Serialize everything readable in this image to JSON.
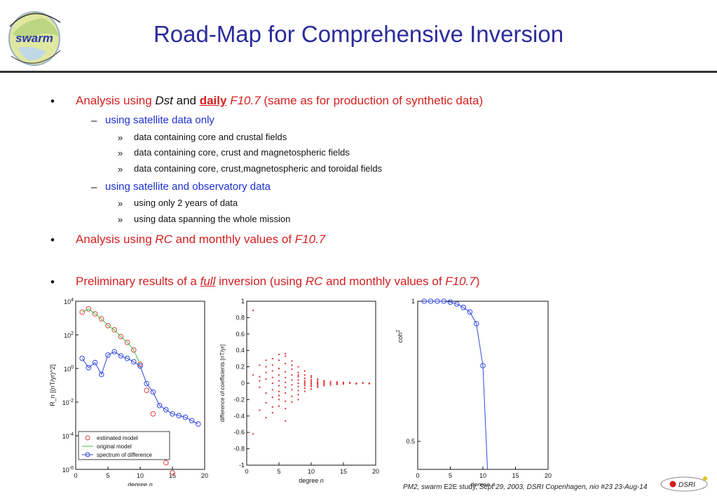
{
  "logo": {
    "text": "swarm",
    "icon": "globe-logo-icon"
  },
  "title": "Road-Map for Comprehensive Inversion",
  "bullets": {
    "b1": {
      "pre": "Analysis using ",
      "dst": "Dst",
      "and": " and ",
      "daily": "daily",
      "f107": "F10.7",
      "post": " (same as for production of synthetic data)"
    },
    "b1_s1": "using satellite data only",
    "b1_s1_items": [
      "data containing core and crustal fields",
      "data containing core, crust and magnetospheric fields",
      "data containing core, crust,magnetospheric and toroidal fields"
    ],
    "b1_s2": "using satellite and observatory data",
    "b1_s2_items": [
      "using only 2 years of data",
      "using data spanning the whole mission"
    ],
    "b2": {
      "pre": "Analysis using ",
      "rc": "RC",
      "mid": " and monthly values of ",
      "f107": "F10.7"
    },
    "b3": {
      "pre": "Preliminary results of a ",
      "full": "full",
      "mid1": " inversion (using ",
      "rc": "RC",
      "mid2": " and monthly values of ",
      "f107": "F10.7",
      "post": ")"
    },
    "markers": {
      "l1": "•",
      "l2": "–",
      "l3": "»"
    }
  },
  "chart_data": [
    {
      "type": "line",
      "xlabel": "degree n",
      "ylabel": "R_n [(nT/yr)^2]",
      "xlim": [
        0,
        20
      ],
      "ylim_log10": [
        -6,
        4
      ],
      "xticks": [
        "0",
        "5",
        "10",
        "15",
        "20"
      ],
      "yticks": [
        "10^-6",
        "10^-4",
        "10^-2",
        "10^0",
        "10^2",
        "10^4"
      ],
      "legend": [
        "estimated model",
        "original model",
        "spectrum of difference"
      ],
      "series": [
        {
          "name": "estimated model",
          "color": "#e04040",
          "marker": "circle",
          "x": [
            1,
            2,
            3,
            4,
            5,
            6,
            7,
            8,
            9,
            10,
            11,
            12,
            13,
            14,
            15
          ],
          "log10y": [
            3.35,
            3.55,
            3.25,
            2.95,
            2.55,
            2.3,
            1.9,
            1.55,
            1.1,
            0.25,
            -1.3,
            -2.7,
            -4.2,
            -5.6,
            -6.2
          ]
        },
        {
          "name": "original model",
          "color": "#40c040",
          "marker": "none",
          "x": [
            1,
            2,
            3,
            4,
            5,
            6,
            7,
            8,
            9,
            10
          ],
          "log10y": [
            3.35,
            3.55,
            3.25,
            2.95,
            2.55,
            2.3,
            1.9,
            1.55,
            1.1,
            0.25
          ]
        },
        {
          "name": "spectrum of difference",
          "color": "#3048e0",
          "marker": "circle",
          "x": [
            1,
            2,
            3,
            4,
            5,
            6,
            7,
            8,
            9,
            10,
            11,
            12,
            13,
            14,
            15,
            16,
            17,
            18,
            19
          ],
          "log10y": [
            0.6,
            0.05,
            0.35,
            -0.35,
            0.8,
            1.0,
            0.75,
            0.6,
            0.4,
            0.15,
            -0.9,
            -1.4,
            -2.2,
            -2.45,
            -2.7,
            -2.8,
            -2.9,
            -3.1,
            -3.3
          ]
        }
      ]
    },
    {
      "type": "scatter",
      "xlabel": "degree n",
      "ylabel": "difference of coefficients [nT/yr]",
      "xlim": [
        0,
        20
      ],
      "ylim": [
        -1,
        1
      ],
      "xticks": [
        "0",
        "5",
        "10",
        "15",
        "20"
      ],
      "yticks": [
        "-1",
        "-0.8",
        "-0.6",
        "-0.4",
        "-0.2",
        "0",
        "0.2",
        "0.4",
        "0.6",
        "0.8",
        "1"
      ],
      "series": [
        {
          "color": "#e03030",
          "points": [
            [
              1,
              0.89
            ],
            [
              1,
              0.1
            ],
            [
              1,
              -0.62
            ],
            [
              2,
              0.22
            ],
            [
              2,
              0.08
            ],
            [
              2,
              -0.05
            ],
            [
              2,
              -0.33
            ],
            [
              2,
              0.03
            ],
            [
              3,
              0.28
            ],
            [
              3,
              0.2
            ],
            [
              3,
              0.05
            ],
            [
              3,
              -0.12
            ],
            [
              3,
              -0.24
            ],
            [
              3,
              -0.42
            ],
            [
              3,
              0.13
            ],
            [
              4,
              0.22
            ],
            [
              4,
              0.15
            ],
            [
              4,
              0.07
            ],
            [
              4,
              0.0
            ],
            [
              4,
              -0.08
            ],
            [
              4,
              -0.17
            ],
            [
              4,
              -0.29
            ],
            [
              4,
              -0.36
            ],
            [
              4,
              0.3
            ],
            [
              5,
              0.28
            ],
            [
              5,
              0.18
            ],
            [
              5,
              0.1
            ],
            [
              5,
              0.03
            ],
            [
              5,
              -0.03
            ],
            [
              5,
              -0.1
            ],
            [
              5,
              -0.2
            ],
            [
              5,
              -0.28
            ],
            [
              5,
              0.35
            ],
            [
              5,
              -0.15
            ],
            [
              6,
              0.36
            ],
            [
              6,
              0.24
            ],
            [
              6,
              0.14
            ],
            [
              6,
              0.07
            ],
            [
              6,
              0.01
            ],
            [
              6,
              -0.05
            ],
            [
              6,
              -0.12
            ],
            [
              6,
              -0.22
            ],
            [
              6,
              -0.31
            ],
            [
              6,
              -0.46
            ],
            [
              6,
              0.33
            ],
            [
              7,
              0.27
            ],
            [
              7,
              0.17
            ],
            [
              7,
              0.1
            ],
            [
              7,
              0.04
            ],
            [
              7,
              -0.02
            ],
            [
              7,
              -0.08
            ],
            [
              7,
              -0.16
            ],
            [
              7,
              -0.23
            ],
            [
              7,
              0.22
            ],
            [
              8,
              0.2
            ],
            [
              8,
              0.13
            ],
            [
              8,
              0.08
            ],
            [
              8,
              0.04
            ],
            [
              8,
              0.0
            ],
            [
              8,
              -0.04
            ],
            [
              8,
              -0.09
            ],
            [
              8,
              -0.14
            ],
            [
              8,
              -0.2
            ],
            [
              8,
              0.1
            ],
            [
              9,
              0.1
            ],
            [
              9,
              0.06
            ],
            [
              9,
              0.03
            ],
            [
              9,
              0.01
            ],
            [
              9,
              -0.01
            ],
            [
              9,
              -0.03
            ],
            [
              9,
              -0.06
            ],
            [
              9,
              -0.1
            ],
            [
              9,
              0.15
            ],
            [
              10,
              0.07
            ],
            [
              10,
              0.04
            ],
            [
              10,
              0.02
            ],
            [
              10,
              0.0
            ],
            [
              10,
              -0.02
            ],
            [
              10,
              -0.04
            ],
            [
              10,
              -0.07
            ],
            [
              10,
              0.09
            ],
            [
              11,
              0.05
            ],
            [
              11,
              0.03
            ],
            [
              11,
              0.01
            ],
            [
              11,
              0.0
            ],
            [
              11,
              -0.01
            ],
            [
              11,
              -0.03
            ],
            [
              11,
              -0.05
            ],
            [
              12,
              0.03
            ],
            [
              12,
              0.015
            ],
            [
              12,
              0.0
            ],
            [
              12,
              -0.015
            ],
            [
              12,
              -0.03
            ],
            [
              13,
              0.02
            ],
            [
              13,
              0.0
            ],
            [
              13,
              -0.02
            ],
            [
              14,
              0.015
            ],
            [
              14,
              0.0
            ],
            [
              14,
              -0.015
            ],
            [
              15,
              0.01
            ],
            [
              15,
              0.0
            ],
            [
              15,
              -0.01
            ],
            [
              16,
              0.0
            ],
            [
              16,
              0.008
            ],
            [
              17,
              0.0
            ],
            [
              17,
              -0.008
            ],
            [
              18,
              0.0
            ],
            [
              18,
              0.006
            ],
            [
              19,
              0.0
            ],
            [
              19,
              -0.006
            ]
          ]
        }
      ]
    },
    {
      "type": "line",
      "xlabel": "degree n",
      "ylabel": "coh^2",
      "xlim": [
        0,
        20
      ],
      "ylim": [
        0.4,
        1
      ],
      "xticks": [
        "0",
        "5",
        "10",
        "15",
        "20"
      ],
      "yticks": [
        "0.5",
        "1"
      ],
      "series": [
        {
          "color": "#3048e0",
          "marker": "circle",
          "x": [
            1,
            2,
            3,
            4,
            5,
            6,
            7,
            8,
            9,
            10,
            10.7
          ],
          "y": [
            1.0,
            1.0,
            1.0,
            1.0,
            0.997,
            0.99,
            0.978,
            0.962,
            0.92,
            0.77,
            0.4
          ],
          "marked": [
            true,
            true,
            true,
            true,
            true,
            true,
            true,
            true,
            true,
            true,
            false
          ]
        }
      ]
    }
  ],
  "footer": {
    "pre": "PM2, ",
    "swarm": "swarm",
    "mid": " E2E study, ",
    "post": "Sept 29, 2003, DSRI Copenhagen, nio #23 23-Aug-14"
  },
  "dsri_label": "DSRI",
  "colors": {
    "title": "#2b2b9c",
    "level1": "#d42020",
    "level2": "#1c2fd0",
    "rule": "#333333"
  }
}
